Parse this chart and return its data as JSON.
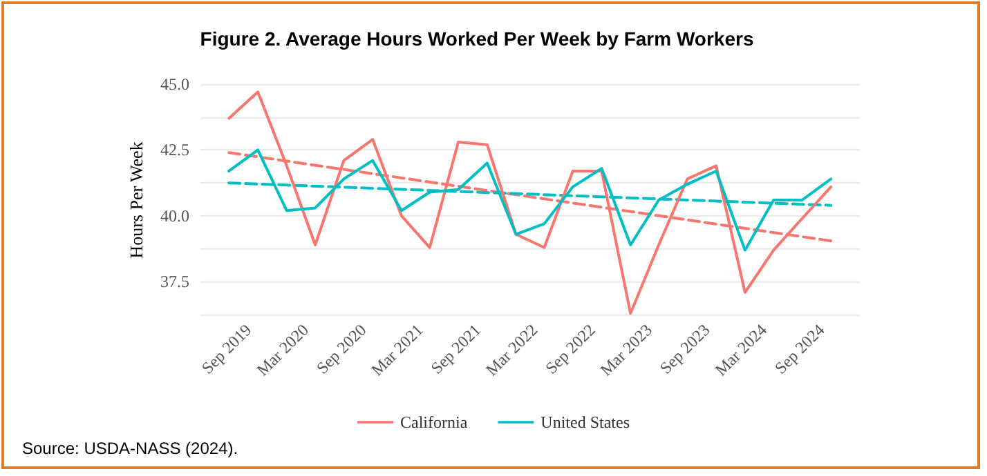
{
  "chart_data": {
    "type": "line",
    "title": "Figure 2. Average Hours Worked Per Week by Farm Workers",
    "ylabel": "Hours Per Week",
    "x": [
      "2019-07",
      "2019-10",
      "2020-01",
      "2020-04",
      "2020-07",
      "2020-10",
      "2021-01",
      "2021-04",
      "2021-07",
      "2021-10",
      "2022-01",
      "2022-04",
      "2022-07",
      "2022-10",
      "2023-01",
      "2023-04",
      "2023-07",
      "2023-10",
      "2024-01",
      "2024-04",
      "2024-07",
      "2024-10"
    ],
    "series": [
      {
        "name": "California",
        "color": "#f8766d",
        "values": [
          43.7,
          44.7,
          41.9,
          38.9,
          42.1,
          42.9,
          40.0,
          38.8,
          42.8,
          42.7,
          39.3,
          38.8,
          41.7,
          41.7,
          36.3,
          38.9,
          41.4,
          41.9,
          37.1,
          38.7,
          39.9,
          41.1
        ]
      },
      {
        "name": "United States",
        "color": "#00bfc4",
        "values": [
          41.7,
          42.5,
          40.2,
          40.3,
          41.4,
          42.1,
          40.2,
          40.9,
          41.0,
          42.0,
          39.3,
          39.7,
          41.1,
          41.8,
          38.9,
          40.6,
          41.2,
          41.7,
          38.7,
          40.6,
          40.6,
          41.4
        ]
      },
      {
        "color": "#f8766d",
        "line_style": "dashed",
        "x": [
          "2019-07",
          "2024-10"
        ],
        "values": [
          42.4,
          39.05
        ]
      },
      {
        "color": "#00bfc4",
        "line_style": "dashed",
        "x": [
          "2019-07",
          "2024-10"
        ],
        "values": [
          41.25,
          40.4
        ]
      }
    ],
    "xlim": [
      "2019-04",
      "2025-01"
    ],
    "xticks": [
      {
        "value": "2019-09",
        "label": "Sep 2019"
      },
      {
        "value": "2020-03",
        "label": "Mar 2020"
      },
      {
        "value": "2020-09",
        "label": "Sep 2020"
      },
      {
        "value": "2021-03",
        "label": "Mar 2021"
      },
      {
        "value": "2021-09",
        "label": "Sep 2021"
      },
      {
        "value": "2022-03",
        "label": "Mar 2022"
      },
      {
        "value": "2022-09",
        "label": "Sep 2022"
      },
      {
        "value": "2023-03",
        "label": "Mar 2023"
      },
      {
        "value": "2023-09",
        "label": "Sep 2023"
      },
      {
        "value": "2024-03",
        "label": "Mar 2024"
      },
      {
        "value": "2024-09",
        "label": "Sep 2024"
      }
    ],
    "ylim": [
      36.1,
      45.1
    ],
    "yticks": [
      {
        "value": 36.25,
        "label": null
      },
      {
        "value": 37.5,
        "label": "37.5"
      },
      {
        "value": 38.75,
        "label": null
      },
      {
        "value": 40,
        "label": "40.0"
      },
      {
        "value": 41.25,
        "label": null
      },
      {
        "value": 42.5,
        "label": "42.5"
      },
      {
        "value": 43.75,
        "label": null
      },
      {
        "value": 45,
        "label": "45.0"
      }
    ],
    "grid": "y",
    "legend": "bottom",
    "marker": "none",
    "line_style": "solid",
    "annotations": [
      "Source: USDA-NASS (2024)."
    ]
  }
}
